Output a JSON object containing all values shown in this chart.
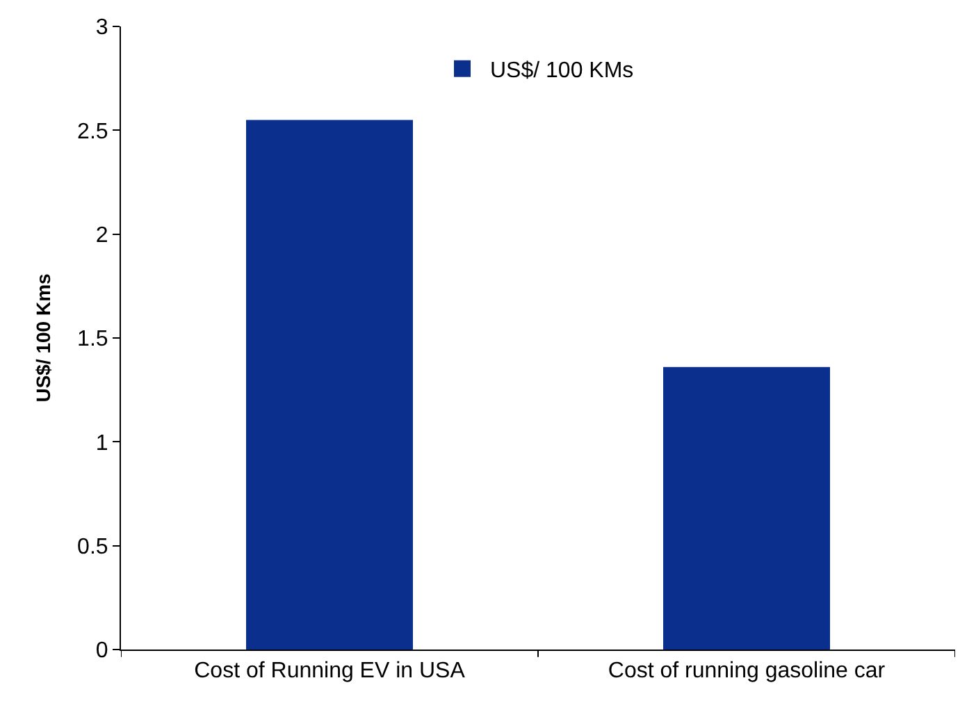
{
  "chart_data": {
    "type": "bar",
    "ylabel": "US$/ 100 Kms",
    "categories": [
      "Cost of Running EV in USA",
      "Cost of running gasoline car"
    ],
    "series": [
      {
        "name": "US$/ 100 KMs",
        "color": "#0b2f8c",
        "values": [
          2.55,
          1.36
        ]
      }
    ],
    "ylim": [
      0,
      3
    ],
    "yticks": [
      0,
      0.5,
      1,
      1.5,
      2,
      2.5,
      3
    ],
    "legend": "top"
  }
}
